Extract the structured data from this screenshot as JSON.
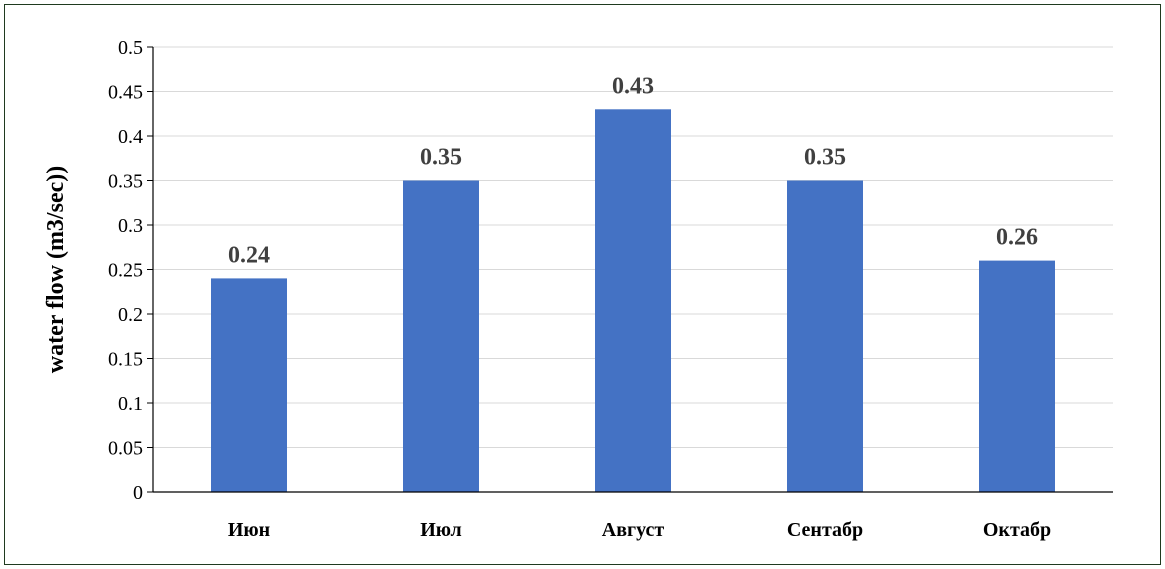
{
  "chart_data": {
    "type": "bar",
    "title": "",
    "xlabel": "",
    "ylabel": "water flow (m3/sec))",
    "categories": [
      "Июн",
      "Июл",
      "Август",
      "Сентабр",
      "Октабр"
    ],
    "values": [
      0.24,
      0.35,
      0.43,
      0.35,
      0.26
    ],
    "data_labels": [
      "0.24",
      "0.35",
      "0.43",
      "0.35",
      "0.26"
    ],
    "ylim": [
      0,
      0.5
    ],
    "yticks": [
      0,
      0.05,
      0.1,
      0.15,
      0.2,
      0.25,
      0.3,
      0.35,
      0.4,
      0.45,
      0.5
    ],
    "ytick_labels": [
      "0",
      "0.05",
      "0.1",
      "0.15",
      "0.2",
      "0.25",
      "0.3",
      "0.35",
      "0.4",
      "0.45",
      "0.5"
    ],
    "grid": true,
    "legend": "none",
    "bar_color": "#4472c4",
    "grid_color": "#d9d9d9"
  }
}
